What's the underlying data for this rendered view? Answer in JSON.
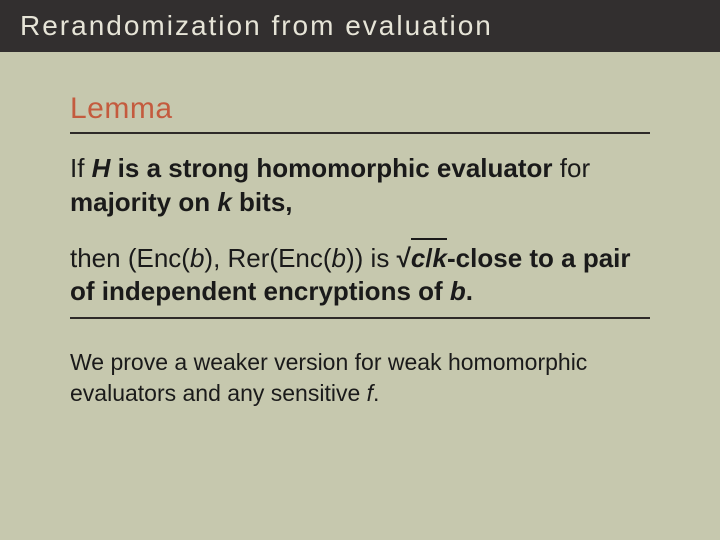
{
  "title": "Rerandomization from evaluation",
  "lemma_label": "Lemma",
  "para1_pre": "If ",
  "para1_H": "H",
  "para1_mid": " is a strong homomorphic evaluator ",
  "para1_for": "for",
  "para1_post": " majority on ",
  "para1_k": "k",
  "para1_end": " bits,",
  "para2_pre": "then (Enc(",
  "para2_b1": "b",
  "para2_mid1": "), Rer(Enc(",
  "para2_b2": "b",
  "para2_mid2": ")) is ",
  "para2_sqrt_sym": "√",
  "para2_c": "c",
  "para2_slash": "/",
  "para2_k2": "k",
  "para2_post": "-close to a pair of independent encryptions of ",
  "para2_b3": "b",
  "para2_end": ".",
  "note_pre": "We prove a weaker version for weak homomorphic evaluators and any sensitive ",
  "note_f": "f",
  "note_end": ".",
  "colors": {
    "background": "#c6c8ae",
    "title_bar": "#322f2f",
    "title_text": "#e6e4d7",
    "accent": "#c45b3e",
    "body_text": "#1a1a1a",
    "rule": "#2d2a28"
  },
  "fontsizes": {
    "title": 28,
    "lemma_label": 30,
    "paragraph": 26,
    "note": 23
  }
}
